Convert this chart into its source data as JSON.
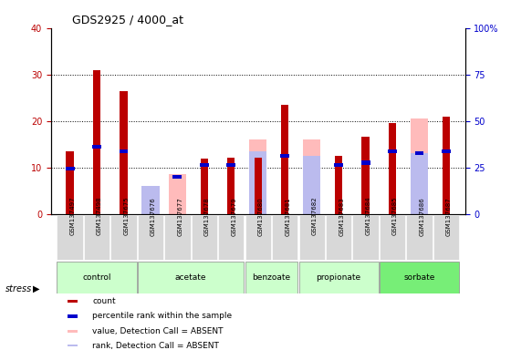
{
  "title": "GDS2925 / 4000_at",
  "samples": [
    "GSM137497",
    "GSM137498",
    "GSM137675",
    "GSM137676",
    "GSM137677",
    "GSM137678",
    "GSM137679",
    "GSM137680",
    "GSM137681",
    "GSM137682",
    "GSM137683",
    "GSM137684",
    "GSM137685",
    "GSM137686",
    "GSM137687"
  ],
  "count_red": [
    13.5,
    31.0,
    26.5,
    0,
    0,
    11.8,
    12.0,
    12.0,
    23.5,
    0,
    12.5,
    16.5,
    19.5,
    0,
    21.0
  ],
  "value_absent_pink": [
    0,
    0,
    0,
    2.5,
    8.5,
    0,
    0,
    16.0,
    0,
    16.0,
    0,
    0,
    0,
    20.5,
    0
  ],
  "rank_absent_lightblue": [
    0,
    0,
    0,
    6.0,
    0,
    0,
    0,
    13.5,
    0,
    12.5,
    0,
    0,
    0,
    13.0,
    0
  ],
  "percentile_blue_left": [
    9.8,
    14.5,
    13.5,
    0,
    8.0,
    10.5,
    10.5,
    0,
    12.5,
    0,
    10.5,
    11.0,
    13.5,
    13.0,
    13.5
  ],
  "ylim_left": [
    0,
    40
  ],
  "ylim_right": [
    0,
    100
  ],
  "yticks_left": [
    0,
    10,
    20,
    30,
    40
  ],
  "yticks_right": [
    0,
    25,
    50,
    75,
    100
  ],
  "ytick_labels_right": [
    "0",
    "25",
    "50",
    "75",
    "100%"
  ],
  "color_red": "#bb0000",
  "color_blue": "#0000cc",
  "color_pink": "#ffbbbb",
  "color_lightblue": "#bbbbee",
  "groups_config": [
    {
      "name": "control",
      "start": 0,
      "end": 2,
      "color": "#ccffcc"
    },
    {
      "name": "acetate",
      "start": 3,
      "end": 6,
      "color": "#ccffcc"
    },
    {
      "name": "benzoate",
      "start": 7,
      "end": 8,
      "color": "#ccffcc"
    },
    {
      "name": "propionate",
      "start": 9,
      "end": 11,
      "color": "#ccffcc"
    },
    {
      "name": "sorbate",
      "start": 12,
      "end": 14,
      "color": "#77ee77"
    }
  ],
  "legend_items": [
    "count",
    "percentile rank within the sample",
    "value, Detection Call = ABSENT",
    "rank, Detection Call = ABSENT"
  ],
  "legend_colors": [
    "#bb0000",
    "#0000cc",
    "#ffbbbb",
    "#bbbbee"
  ]
}
